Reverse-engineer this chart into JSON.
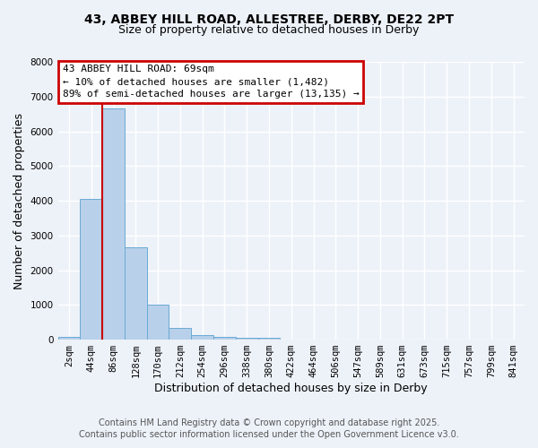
{
  "title_line1": "43, ABBEY HILL ROAD, ALLESTREE, DERBY, DE22 2PT",
  "title_line2": "Size of property relative to detached houses in Derby",
  "xlabel": "Distribution of detached houses by size in Derby",
  "ylabel": "Number of detached properties",
  "bar_labels": [
    "2sqm",
    "44sqm",
    "86sqm",
    "128sqm",
    "170sqm",
    "212sqm",
    "254sqm",
    "296sqm",
    "338sqm",
    "380sqm",
    "422sqm",
    "464sqm",
    "506sqm",
    "547sqm",
    "589sqm",
    "631sqm",
    "673sqm",
    "715sqm",
    "757sqm",
    "799sqm",
    "841sqm"
  ],
  "bar_values": [
    80,
    4050,
    6650,
    2650,
    1000,
    330,
    120,
    70,
    50,
    60,
    0,
    0,
    0,
    0,
    0,
    0,
    0,
    0,
    0,
    0,
    0
  ],
  "bar_color": "#b8d0ea",
  "bar_edgecolor": "#6aaad4",
  "red_line_color": "#cc0000",
  "annotation_text": "43 ABBEY HILL ROAD: 69sqm\n← 10% of detached houses are smaller (1,482)\n89% of semi-detached houses are larger (13,135) →",
  "annotation_box_color": "#cc0000",
  "annotation_text_color": "#000000",
  "ylim": [
    0,
    8000
  ],
  "yticks": [
    0,
    1000,
    2000,
    3000,
    4000,
    5000,
    6000,
    7000,
    8000
  ],
  "bg_color": "#edf2f9",
  "grid_color": "#ffffff",
  "footnote_line1": "Contains HM Land Registry data © Crown copyright and database right 2025.",
  "footnote_line2": "Contains public sector information licensed under the Open Government Licence v3.0.",
  "title_fontsize": 10,
  "subtitle_fontsize": 9,
  "axis_label_fontsize": 9,
  "tick_fontsize": 7.5,
  "annotation_fontsize": 8,
  "footnote_fontsize": 7
}
